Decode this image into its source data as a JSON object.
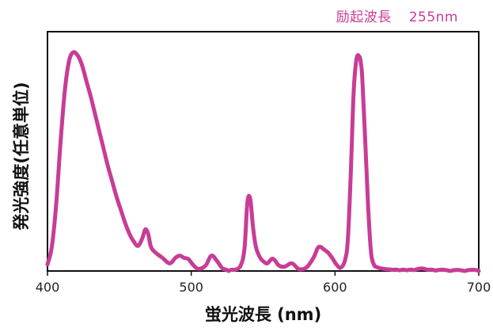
{
  "chart_data": {
    "type": "line",
    "annotation": {
      "label": "励起波長",
      "value": "255nm"
    },
    "xlabel": "蛍光波長 (nm)",
    "ylabel": "発光強度(任意単位)",
    "xlim": [
      400,
      700
    ],
    "ylim": [
      0,
      1.0
    ],
    "x_ticks": [
      400,
      500,
      600,
      700
    ],
    "grid": false,
    "series": [
      {
        "color": "#c83c96",
        "x": [
          400,
          403,
          406,
          409,
          412,
          415,
          418,
          421,
          423,
          425,
          427,
          430,
          433,
          436,
          439,
          442,
          445,
          448,
          451,
          454,
          457,
          460,
          463,
          466,
          468,
          470,
          472,
          475,
          480,
          485,
          489,
          492,
          495,
          498,
          501,
          505,
          510,
          514,
          518,
          522,
          526,
          530,
          534,
          537,
          539,
          541,
          543,
          545,
          548,
          551,
          553,
          556,
          558,
          561,
          565,
          570,
          575,
          580,
          585,
          588,
          590,
          592,
          595,
          598,
          601,
          604,
          607,
          609,
          611,
          613,
          615,
          617,
          618,
          619,
          621,
          623,
          625,
          627,
          629,
          632,
          636,
          640,
          645,
          650,
          655,
          660,
          665,
          670,
          680,
          690,
          700
        ],
        "y": [
          0.03,
          0.11,
          0.3,
          0.58,
          0.82,
          0.96,
          1.0,
          0.985,
          0.96,
          0.92,
          0.87,
          0.8,
          0.72,
          0.64,
          0.56,
          0.48,
          0.41,
          0.34,
          0.28,
          0.22,
          0.17,
          0.135,
          0.115,
          0.15,
          0.19,
          0.17,
          0.11,
          0.085,
          0.06,
          0.035,
          0.06,
          0.07,
          0.06,
          0.055,
          0.03,
          0.01,
          0.025,
          0.07,
          0.045,
          0.01,
          0.0,
          0.005,
          0.02,
          0.1,
          0.31,
          0.33,
          0.2,
          0.11,
          0.06,
          0.04,
          0.035,
          0.055,
          0.05,
          0.025,
          0.02,
          0.035,
          0.008,
          0.015,
          0.06,
          0.105,
          0.11,
          0.1,
          0.085,
          0.06,
          0.03,
          0.015,
          0.05,
          0.15,
          0.45,
          0.82,
          0.97,
          0.98,
          0.95,
          0.88,
          0.6,
          0.3,
          0.09,
          0.03,
          0.018,
          0.012,
          0.008,
          0.005,
          0.003,
          0.003,
          0.004,
          0.012,
          0.005,
          0.002,
          0.0,
          0.0,
          0.0
        ]
      }
    ]
  }
}
